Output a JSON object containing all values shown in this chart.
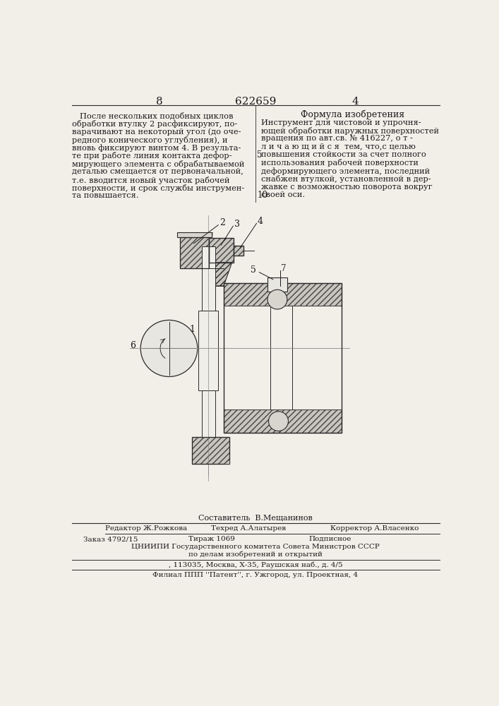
{
  "page_num_left": "8",
  "patent_num": "622659",
  "page_num_right": "4",
  "left_column_text": [
    "После нескольких подобных циклов",
    "обработки втулку 2 расфиксируют, по-",
    "варачивают на некоторый угол (до оче-",
    "редного конического углубления), и",
    "вновь фиксируют винтом 4. В результа-",
    "те при работе линия контакта дефор-",
    "мирующего элемента с обрабатываемой",
    "деталью смещается от первоначальной,",
    "т.е. вводится новый участок рабочей",
    "поверхности, и срок службы инструмен-",
    "та повышается."
  ],
  "line_number_5": "5",
  "line_number_10": "10",
  "right_column_title": "Формула изобретения",
  "right_column_text": [
    "Инструмент для чистовой и упрочня-",
    "ющей обработки наружных поверхностей",
    "вращения по авт.св. № 416227, о т -",
    "л и ч а ю щ и й с я  тем, что,с целью",
    "повышения стойкости за счет полного",
    "использования рабочей поверхности",
    "деформирующего элемента, последний",
    "снабжен втулкой, установленной в дер-",
    "жавке с возможностью поворота вокруг",
    "своей оси."
  ],
  "footer_author": "Составитель  В.Мещанинов",
  "footer_editor": "Редактор Ж.Рожкова",
  "footer_tech": "Техред А.Алатырев",
  "footer_corrector": "Корректор А.Власенко",
  "footer_order": "Заказ 4792/15",
  "footer_circulation": "Тираж 1069",
  "footer_subscription": "Подписное",
  "footer_org": "ЦНИИПИ Государственного комитета Совета Министров СССР",
  "footer_org2": "по делам изобретений и открытий",
  "footer_address": ", 113035, Москва, Х-35, Раушская наб., д. 4/5",
  "footer_branch": "Филиал ППП ''Патент'', г. Ужгород, ул. Проектная, 4",
  "bg_color": "#f2efe9",
  "text_color": "#1a1a1a",
  "line_color": "#2a2a2a",
  "hatch_bg": "#c8c5be",
  "hatch_color": "#444444"
}
